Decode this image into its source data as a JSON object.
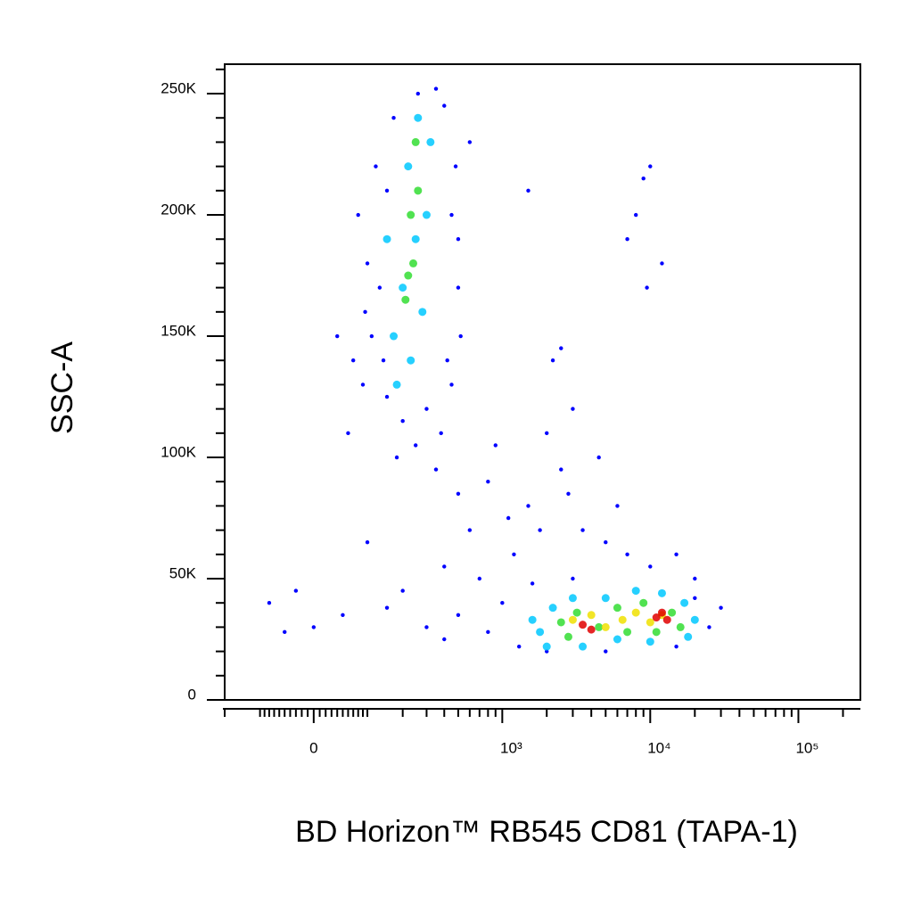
{
  "chart_data": {
    "type": "scatter",
    "x_label": "BD Horizon™ RB545 CD81 (TAPA-1)",
    "y_label": "SSC-A",
    "xscale": "biexponential",
    "xlim": [
      -200,
      262144
    ],
    "xticks": [
      0,
      {
        "value": 1000,
        "label": "10³"
      },
      {
        "value": 10000,
        "label": "10⁴"
      },
      {
        "value": 100000,
        "label": "10⁵"
      }
    ],
    "xminorticks": [
      -200,
      -100,
      -90,
      -80,
      -70,
      -60,
      -50,
      -40,
      -30,
      -20,
      -10,
      10,
      20,
      30,
      40,
      50,
      60,
      70,
      80,
      90,
      100,
      200,
      300,
      400,
      500,
      600,
      700,
      800,
      900,
      2000,
      3000,
      4000,
      5000,
      6000,
      7000,
      8000,
      9000,
      20000,
      30000,
      40000,
      50000,
      60000,
      70000,
      80000,
      90000,
      200000
    ],
    "ylim": [
      0,
      262144
    ],
    "yticks": [
      0,
      {
        "value": 50000,
        "label": "50K"
      },
      {
        "value": 100000,
        "label": "100K"
      },
      {
        "value": 150000,
        "label": "150K"
      },
      {
        "value": 200000,
        "label": "200K"
      },
      {
        "value": 250000,
        "label": "250K"
      }
    ],
    "yminorticks": [
      10000,
      20000,
      30000,
      40000,
      60000,
      70000,
      80000,
      90000,
      110000,
      120000,
      130000,
      140000,
      160000,
      170000,
      180000,
      190000,
      210000,
      220000,
      230000,
      240000,
      260000
    ],
    "series": [
      {
        "color": "#0000ff",
        "x": [
          90,
          110,
          130,
          150,
          170,
          400,
          450,
          500,
          520,
          450,
          300,
          200,
          150,
          100,
          120,
          260,
          350,
          480,
          420,
          250,
          180,
          80,
          95,
          500,
          380,
          600,
          70,
          140,
          350,
          500,
          800,
          1500,
          2500,
          3500,
          5000,
          7000,
          1200,
          600,
          400,
          2000,
          3000,
          900,
          1800,
          2800,
          4500,
          6000,
          10000,
          15000,
          20000,
          700,
          1000,
          500,
          300,
          150,
          50,
          -50,
          -80,
          0,
          200,
          400,
          800,
          1100,
          2200,
          2500,
          8000,
          9000,
          10000,
          9500,
          12000,
          7000,
          1500,
          30000,
          25000,
          1300,
          2000,
          5000,
          15000,
          20000,
          1600,
          3000,
          -30,
          100,
          60,
          40
        ],
        "y": [
          130000,
          150000,
          170000,
          210000,
          240000,
          245000,
          200000,
          170000,
          150000,
          130000,
          120000,
          115000,
          125000,
          180000,
          220000,
          250000,
          252000,
          220000,
          140000,
          105000,
          100000,
          200000,
          160000,
          190000,
          110000,
          230000,
          140000,
          140000,
          95000,
          85000,
          90000,
          80000,
          95000,
          70000,
          65000,
          60000,
          60000,
          70000,
          55000,
          110000,
          120000,
          105000,
          70000,
          85000,
          100000,
          80000,
          55000,
          60000,
          50000,
          50000,
          40000,
          35000,
          30000,
          38000,
          35000,
          28000,
          40000,
          30000,
          45000,
          25000,
          28000,
          75000,
          140000,
          145000,
          200000,
          215000,
          220000,
          170000,
          180000,
          190000,
          210000,
          38000,
          30000,
          22000,
          20000,
          20000,
          22000,
          42000,
          48000,
          50000,
          45000,
          65000,
          110000,
          150000
        ]
      },
      {
        "color": "#00c8ff",
        "x": [
          170,
          200,
          250,
          220,
          260,
          300,
          180,
          230,
          280,
          320,
          150,
          1800,
          2200,
          3000,
          5000,
          8000,
          12000,
          17000,
          20000,
          18000,
          10000,
          6000,
          3500,
          2000,
          1600
        ],
        "y": [
          150000,
          170000,
          190000,
          220000,
          240000,
          200000,
          130000,
          140000,
          160000,
          230000,
          190000,
          28000,
          38000,
          42000,
          42000,
          45000,
          44000,
          40000,
          33000,
          26000,
          24000,
          25000,
          22000,
          22000,
          33000
        ]
      },
      {
        "color": "#33dd33",
        "x": [
          210,
          240,
          230,
          260,
          220,
          250,
          2500,
          3200,
          4500,
          6000,
          9000,
          14000,
          16000,
          2800,
          7000,
          11000
        ],
        "y": [
          165000,
          180000,
          200000,
          210000,
          175000,
          230000,
          32000,
          36000,
          30000,
          38000,
          40000,
          36000,
          30000,
          26000,
          28000,
          28000
        ]
      },
      {
        "color": "#f0e000",
        "x": [
          3000,
          4000,
          6500,
          8000,
          10000,
          12000,
          5000
        ],
        "y": [
          33000,
          35000,
          33000,
          36000,
          32000,
          35000,
          30000
        ]
      },
      {
        "color": "#e00000",
        "x": [
          3500,
          4000,
          11000,
          13000,
          12000
        ],
        "y": [
          31000,
          29000,
          34000,
          33000,
          36000
        ]
      }
    ]
  }
}
